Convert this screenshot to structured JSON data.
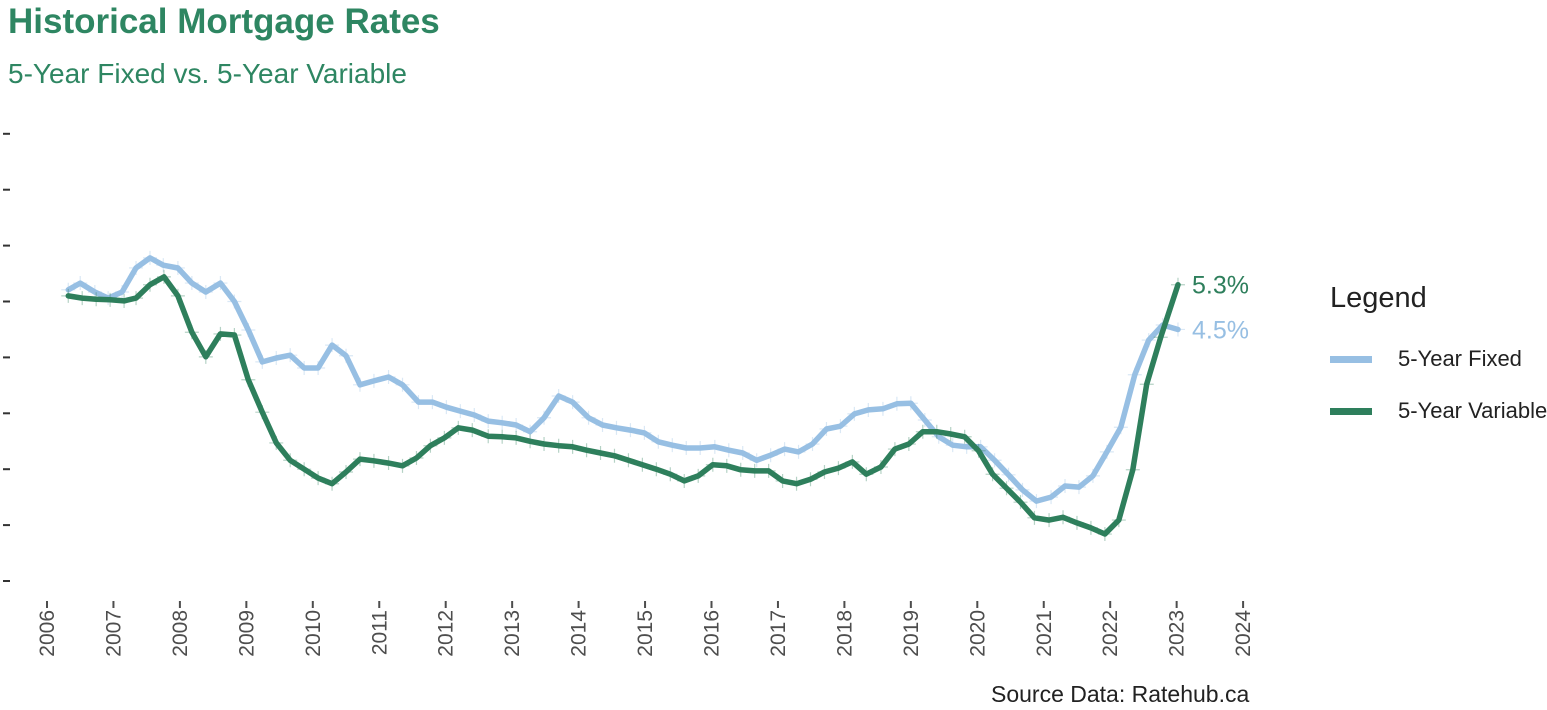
{
  "chart_data": {
    "type": "line",
    "title": "Historical Mortgage Rates",
    "subtitle": "5-Year Fixed vs. 5-Year Variable",
    "caption": "Source Data: Ratehub.ca",
    "xlabel": "",
    "ylabel": "",
    "xlim": [
      2005.7,
      2024.2
    ],
    "ylim": [
      -0.35,
      8.3
    ],
    "x_ticks": [
      "2006",
      "2007",
      "2008",
      "2009",
      "2010",
      "2011",
      "2012",
      "2013",
      "2014",
      "2015",
      "2016",
      "2017",
      "2018",
      "2019",
      "2020",
      "2021",
      "2022",
      "2023",
      "2024"
    ],
    "y_ticks": [
      0,
      1,
      2,
      3,
      4,
      5,
      6,
      7,
      8
    ],
    "y_tick_labels_visible": false,
    "grid": false,
    "markers": "plus",
    "legend": {
      "title": "Legend",
      "placement": "right"
    },
    "series": [
      {
        "name": "5-Year Fixed",
        "color": "#97bfe3",
        "end_label": "4.5%",
        "x": [
          2006.32,
          2006.5,
          2006.72,
          2006.92,
          2007.13,
          2007.34,
          2007.55,
          2007.75,
          2007.97,
          2008.18,
          2008.39,
          2008.61,
          2008.82,
          2009.03,
          2009.24,
          2009.45,
          2009.66,
          2009.87,
          2010.08,
          2010.29,
          2010.5,
          2010.71,
          2010.92,
          2011.14,
          2011.35,
          2011.59,
          2011.8,
          2012.01,
          2012.22,
          2012.43,
          2012.64,
          2012.85,
          2013.06,
          2013.27,
          2013.48,
          2013.7,
          2013.91,
          2014.15,
          2014.36,
          2014.57,
          2014.78,
          2014.99,
          2015.2,
          2015.41,
          2015.62,
          2015.83,
          2016.05,
          2016.26,
          2016.47,
          2016.68,
          2016.89,
          2017.1,
          2017.31,
          2017.52,
          2017.73,
          2017.94,
          2018.15,
          2018.36,
          2018.58,
          2018.79,
          2019.0,
          2019.21,
          2019.42,
          2019.63,
          2019.84,
          2020.05,
          2020.26,
          2020.47,
          2020.68,
          2020.89,
          2021.11,
          2021.32,
          2021.53,
          2021.74,
          2021.95,
          2022.16,
          2022.37,
          2022.58,
          2022.79,
          2023.02
        ],
        "values": [
          5.21,
          5.33,
          5.17,
          5.06,
          5.17,
          5.6,
          5.78,
          5.65,
          5.6,
          5.33,
          5.17,
          5.33,
          5.0,
          4.49,
          3.92,
          3.99,
          4.04,
          3.81,
          3.81,
          4.22,
          4.03,
          3.51,
          3.58,
          3.65,
          3.51,
          3.2,
          3.2,
          3.11,
          3.04,
          2.97,
          2.86,
          2.83,
          2.79,
          2.67,
          2.92,
          3.31,
          3.2,
          2.92,
          2.79,
          2.74,
          2.7,
          2.65,
          2.49,
          2.43,
          2.38,
          2.38,
          2.4,
          2.34,
          2.29,
          2.16,
          2.25,
          2.36,
          2.31,
          2.45,
          2.72,
          2.77,
          2.99,
          3.06,
          3.08,
          3.17,
          3.18,
          2.88,
          2.58,
          2.43,
          2.4,
          2.4,
          2.16,
          1.9,
          1.63,
          1.43,
          1.5,
          1.7,
          1.68,
          1.88,
          2.31,
          2.75,
          3.69,
          4.31,
          4.58,
          4.5
        ]
      },
      {
        "name": "5-Year Variable",
        "color": "#2e7f5c",
        "end_label": "5.3%",
        "x": [
          2006.32,
          2006.53,
          2006.74,
          2006.95,
          2007.16,
          2007.34,
          2007.55,
          2007.76,
          2007.97,
          2008.18,
          2008.39,
          2008.61,
          2008.82,
          2009.03,
          2009.24,
          2009.45,
          2009.66,
          2009.87,
          2010.08,
          2010.29,
          2010.5,
          2010.71,
          2010.92,
          2011.14,
          2011.35,
          2011.56,
          2011.77,
          2011.98,
          2012.19,
          2012.4,
          2012.64,
          2012.85,
          2013.06,
          2013.27,
          2013.48,
          2013.7,
          2013.91,
          2014.12,
          2014.33,
          2014.54,
          2014.75,
          2014.96,
          2015.17,
          2015.38,
          2015.59,
          2015.8,
          2016.02,
          2016.23,
          2016.44,
          2016.65,
          2016.86,
          2017.07,
          2017.28,
          2017.49,
          2017.7,
          2017.91,
          2018.12,
          2018.33,
          2018.55,
          2018.76,
          2018.97,
          2019.18,
          2019.39,
          2019.6,
          2019.81,
          2020.02,
          2020.23,
          2020.44,
          2020.65,
          2020.86,
          2021.08,
          2021.29,
          2021.5,
          2021.71,
          2021.92,
          2022.13,
          2022.34,
          2022.55,
          2022.76,
          2023.02
        ],
        "values": [
          5.1,
          5.06,
          5.04,
          5.03,
          5.01,
          5.06,
          5.3,
          5.44,
          5.1,
          4.45,
          4.01,
          4.42,
          4.4,
          3.6,
          3.02,
          2.47,
          2.16,
          2.0,
          1.84,
          1.74,
          1.95,
          2.18,
          2.15,
          2.11,
          2.06,
          2.2,
          2.42,
          2.56,
          2.74,
          2.7,
          2.59,
          2.58,
          2.56,
          2.5,
          2.45,
          2.42,
          2.4,
          2.34,
          2.29,
          2.24,
          2.16,
          2.08,
          2.0,
          1.91,
          1.79,
          1.88,
          2.08,
          2.06,
          1.99,
          1.97,
          1.97,
          1.79,
          1.74,
          1.82,
          1.95,
          2.02,
          2.13,
          1.91,
          2.04,
          2.36,
          2.45,
          2.67,
          2.67,
          2.63,
          2.58,
          2.33,
          1.91,
          1.66,
          1.41,
          1.13,
          1.09,
          1.14,
          1.04,
          0.95,
          0.84,
          1.09,
          1.99,
          3.52,
          4.36,
          5.3
        ]
      }
    ]
  }
}
